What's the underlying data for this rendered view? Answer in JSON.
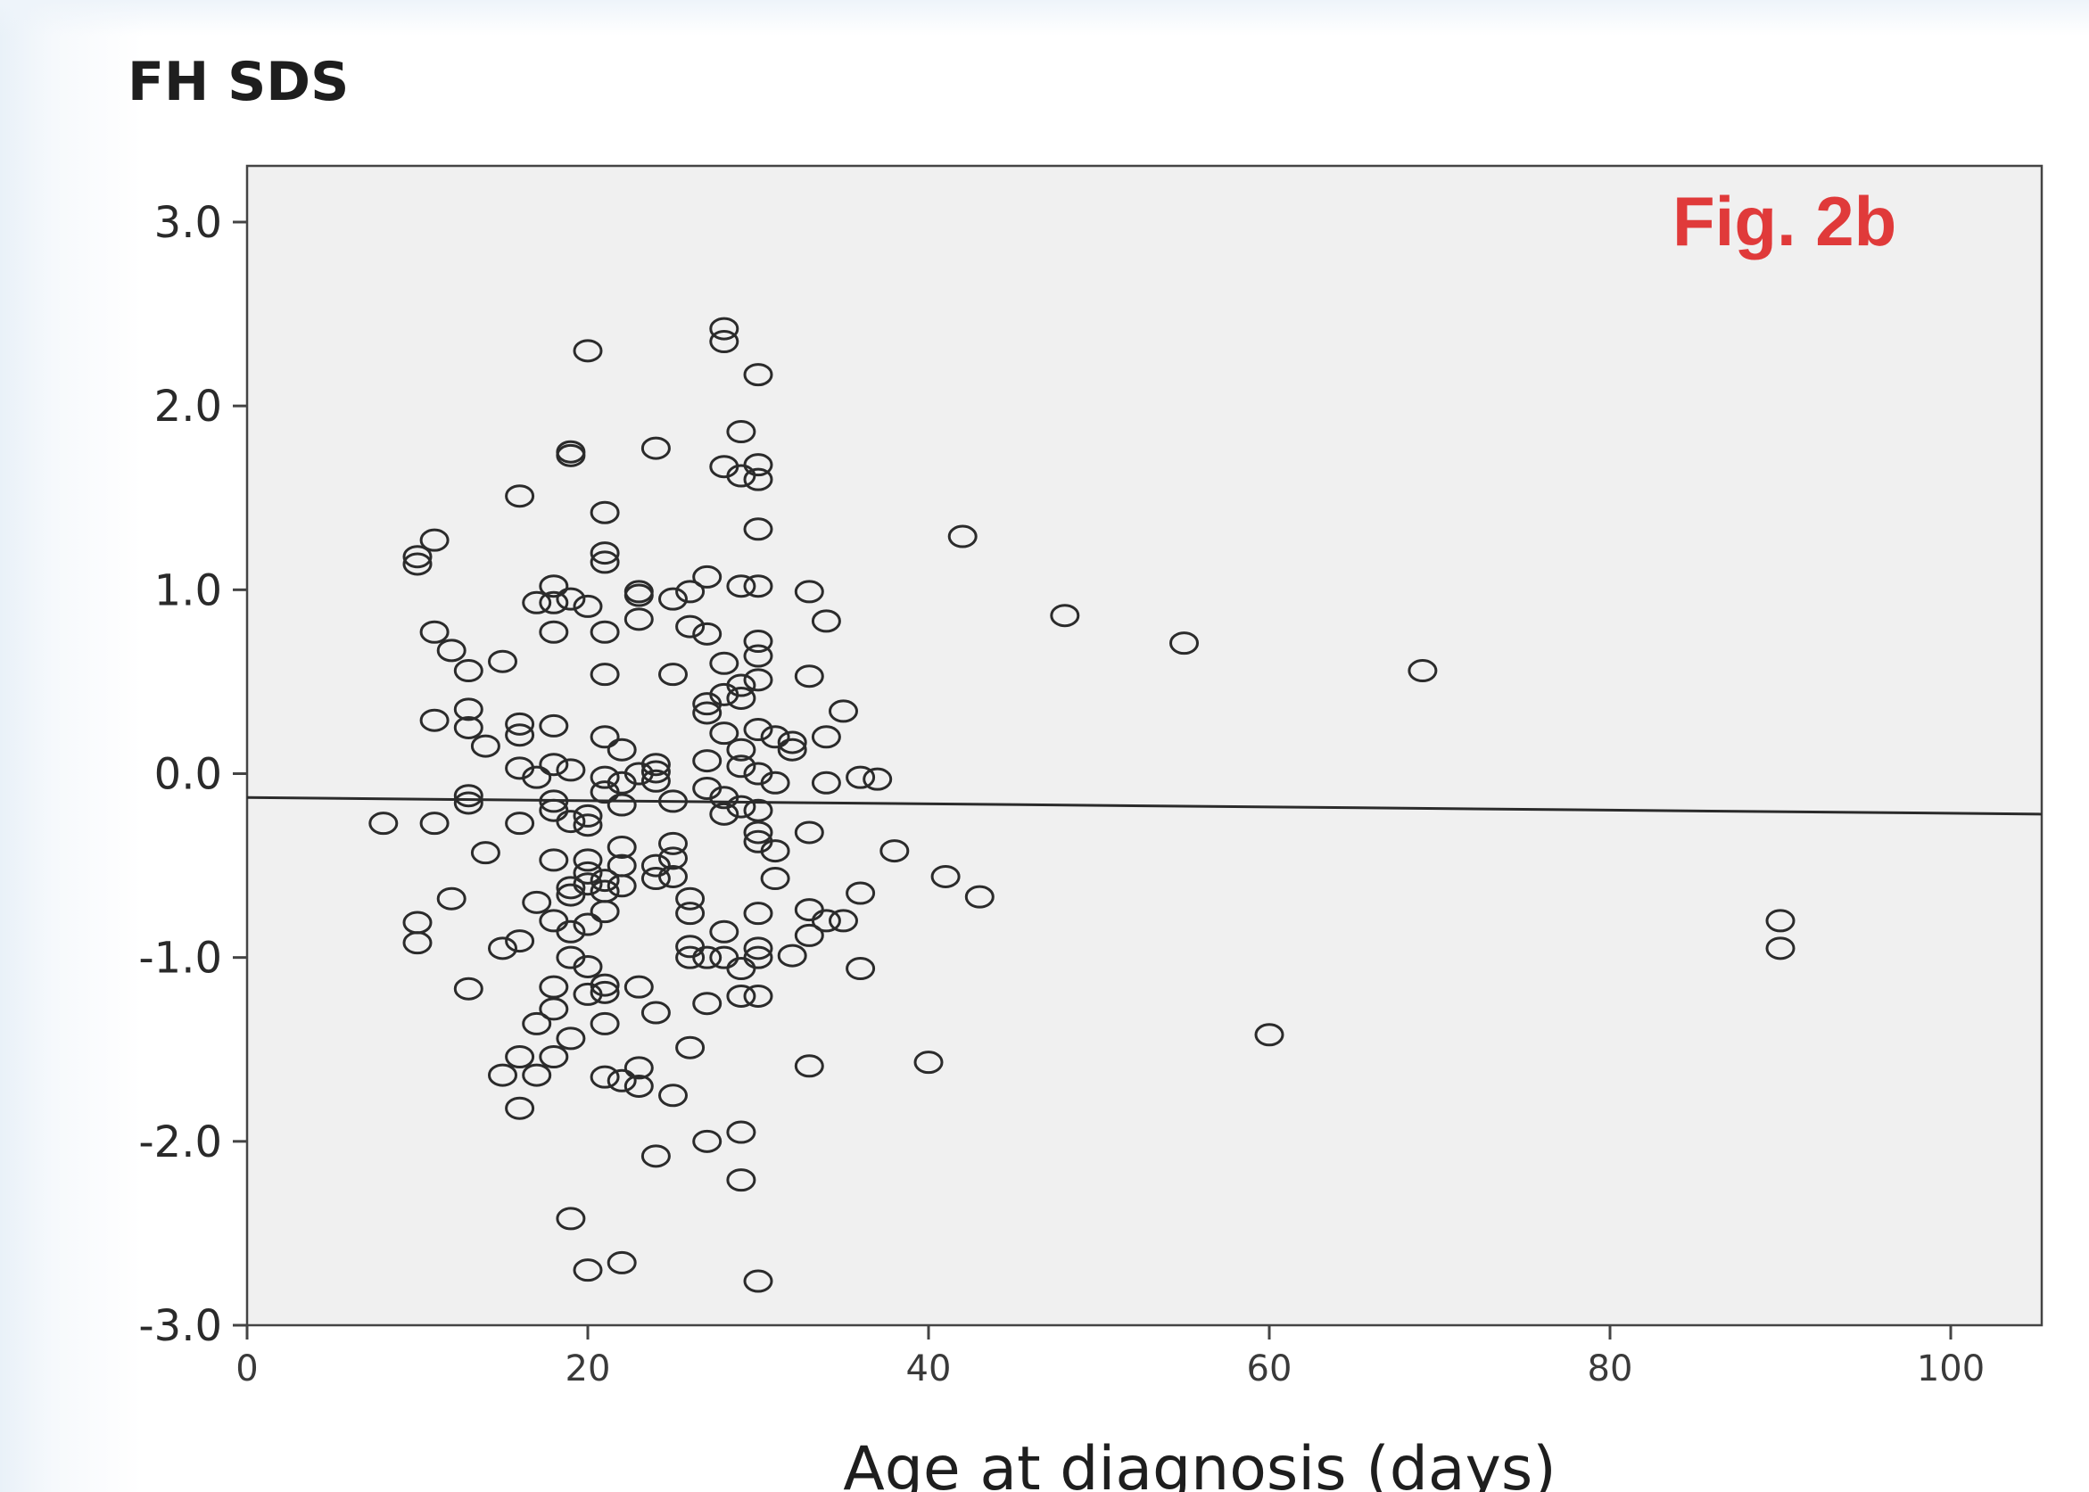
{
  "chart_data": {
    "type": "scatter",
    "title": "FH SDS",
    "annotation": "Fig. 2b",
    "xlabel": "Age at diagnosis (days)",
    "ylabel": "",
    "xlim": [
      0,
      105
    ],
    "ylim": [
      -3.0,
      3.3
    ],
    "xticks": [
      0,
      20,
      40,
      60,
      80,
      100
    ],
    "xtick_labels": [
      "0",
      "20",
      "40",
      "60",
      "80",
      "100"
    ],
    "yticks": [
      3.0,
      2.0,
      1.0,
      0.0,
      -1.0,
      -2.0,
      -3.0
    ],
    "ytick_labels": [
      "3.0",
      "2.0",
      "1.0",
      "0.0",
      "-1.0",
      "-2.0",
      "-3.0"
    ],
    "grid": false,
    "colors": {
      "plot_bg": "#f0f0f0",
      "marker": "#2b2b2b",
      "annotation": "#e03a3a",
      "line": "#2b2b2b"
    },
    "regression_line": {
      "x": [
        0,
        105
      ],
      "y": [
        -0.13,
        -0.22
      ]
    },
    "points": [
      [
        20,
        2.3
      ],
      [
        28,
        2.42
      ],
      [
        28,
        2.35
      ],
      [
        30,
        2.17
      ],
      [
        19,
        1.75
      ],
      [
        19,
        1.73
      ],
      [
        24,
        1.77
      ],
      [
        29,
        1.86
      ],
      [
        28,
        1.67
      ],
      [
        29,
        1.62
      ],
      [
        30,
        1.68
      ],
      [
        30,
        1.6
      ],
      [
        16,
        1.51
      ],
      [
        21,
        1.42
      ],
      [
        30,
        1.33
      ],
      [
        42,
        1.29
      ],
      [
        10,
        1.18
      ],
      [
        10,
        1.14
      ],
      [
        11,
        1.27
      ],
      [
        21,
        1.2
      ],
      [
        21,
        1.15
      ],
      [
        18,
        1.02
      ],
      [
        17,
        0.93
      ],
      [
        18,
        0.93
      ],
      [
        19,
        0.95
      ],
      [
        20,
        0.91
      ],
      [
        23,
        0.99
      ],
      [
        23,
        0.97
      ],
      [
        25,
        0.95
      ],
      [
        26,
        0.99
      ],
      [
        27,
        1.07
      ],
      [
        29,
        1.02
      ],
      [
        30,
        1.02
      ],
      [
        33,
        0.99
      ],
      [
        34,
        0.83
      ],
      [
        48,
        0.86
      ],
      [
        55,
        0.71
      ],
      [
        69,
        0.56
      ],
      [
        11,
        0.77
      ],
      [
        12,
        0.67
      ],
      [
        13,
        0.56
      ],
      [
        15,
        0.61
      ],
      [
        18,
        0.77
      ],
      [
        21,
        0.77
      ],
      [
        23,
        0.84
      ],
      [
        26,
        0.8
      ],
      [
        27,
        0.76
      ],
      [
        30,
        0.72
      ],
      [
        30,
        0.64
      ],
      [
        28,
        0.6
      ],
      [
        21,
        0.54
      ],
      [
        25,
        0.54
      ],
      [
        30,
        0.51
      ],
      [
        29,
        0.48
      ],
      [
        33,
        0.53
      ],
      [
        28,
        0.43
      ],
      [
        27,
        0.38
      ],
      [
        27,
        0.33
      ],
      [
        29,
        0.41
      ],
      [
        35,
        0.34
      ],
      [
        11,
        0.29
      ],
      [
        13,
        0.35
      ],
      [
        13,
        0.25
      ],
      [
        14,
        0.15
      ],
      [
        16,
        0.27
      ],
      [
        16,
        0.21
      ],
      [
        18,
        0.26
      ],
      [
        21,
        0.2
      ],
      [
        22,
        0.13
      ],
      [
        28,
        0.22
      ],
      [
        30,
        0.24
      ],
      [
        31,
        0.2
      ],
      [
        32,
        0.17
      ],
      [
        32,
        0.13
      ],
      [
        34,
        0.2
      ],
      [
        29,
        0.13
      ],
      [
        16,
        0.03
      ],
      [
        17,
        -0.02
      ],
      [
        18,
        0.05
      ],
      [
        19,
        0.02
      ],
      [
        21,
        -0.02
      ],
      [
        22,
        -0.05
      ],
      [
        23,
        0.0
      ],
      [
        24,
        0.05
      ],
      [
        24,
        0.01
      ],
      [
        24,
        -0.04
      ],
      [
        27,
        0.07
      ],
      [
        29,
        0.04
      ],
      [
        30,
        0.0
      ],
      [
        31,
        -0.05
      ],
      [
        34,
        -0.05
      ],
      [
        36,
        -0.02
      ],
      [
        37,
        -0.03
      ],
      [
        13,
        -0.12
      ],
      [
        13,
        -0.16
      ],
      [
        18,
        -0.15
      ],
      [
        18,
        -0.2
      ],
      [
        20,
        -0.23
      ],
      [
        21,
        -0.1
      ],
      [
        22,
        -0.17
      ],
      [
        25,
        -0.15
      ],
      [
        27,
        -0.08
      ],
      [
        28,
        -0.13
      ],
      [
        28,
        -0.22
      ],
      [
        29,
        -0.18
      ],
      [
        30,
        -0.2
      ],
      [
        8,
        -0.27
      ],
      [
        11,
        -0.27
      ],
      [
        16,
        -0.27
      ],
      [
        19,
        -0.26
      ],
      [
        20,
        -0.28
      ],
      [
        30,
        -0.32
      ],
      [
        30,
        -0.37
      ],
      [
        31,
        -0.42
      ],
      [
        33,
        -0.32
      ],
      [
        38,
        -0.42
      ],
      [
        14,
        -0.43
      ],
      [
        18,
        -0.47
      ],
      [
        20,
        -0.47
      ],
      [
        20,
        -0.54
      ],
      [
        22,
        -0.4
      ],
      [
        22,
        -0.5
      ],
      [
        24,
        -0.5
      ],
      [
        24,
        -0.57
      ],
      [
        25,
        -0.38
      ],
      [
        25,
        -0.46
      ],
      [
        25,
        -0.56
      ],
      [
        31,
        -0.57
      ],
      [
        41,
        -0.56
      ],
      [
        36,
        -0.65
      ],
      [
        43,
        -0.67
      ],
      [
        12,
        -0.68
      ],
      [
        19,
        -0.62
      ],
      [
        19,
        -0.66
      ],
      [
        20,
        -0.6
      ],
      [
        21,
        -0.58
      ],
      [
        21,
        -0.64
      ],
      [
        22,
        -0.61
      ],
      [
        26,
        -0.68
      ],
      [
        26,
        -0.76
      ],
      [
        30,
        -0.76
      ],
      [
        33,
        -0.74
      ],
      [
        17,
        -0.7
      ],
      [
        18,
        -0.8
      ],
      [
        19,
        -0.86
      ],
      [
        20,
        -0.82
      ],
      [
        21,
        -0.75
      ],
      [
        34,
        -0.8
      ],
      [
        35,
        -0.8
      ],
      [
        10,
        -0.81
      ],
      [
        10,
        -0.92
      ],
      [
        15,
        -0.95
      ],
      [
        16,
        -0.91
      ],
      [
        19,
        -1.0
      ],
      [
        28,
        -0.86
      ],
      [
        26,
        -0.94
      ],
      [
        26,
        -1.0
      ],
      [
        27,
        -1.0
      ],
      [
        28,
        -1.0
      ],
      [
        30,
        -0.95
      ],
      [
        30,
        -1.0
      ],
      [
        32,
        -0.99
      ],
      [
        33,
        -0.88
      ],
      [
        90,
        -0.8
      ],
      [
        90,
        -0.95
      ],
      [
        20,
        -1.05
      ],
      [
        29,
        -1.06
      ],
      [
        36,
        -1.06
      ],
      [
        13,
        -1.17
      ],
      [
        18,
        -1.16
      ],
      [
        20,
        -1.2
      ],
      [
        21,
        -1.19
      ],
      [
        21,
        -1.15
      ],
      [
        23,
        -1.16
      ],
      [
        27,
        -1.25
      ],
      [
        29,
        -1.21
      ],
      [
        30,
        -1.21
      ],
      [
        18,
        -1.28
      ],
      [
        17,
        -1.36
      ],
      [
        21,
        -1.36
      ],
      [
        24,
        -1.3
      ],
      [
        19,
        -1.44
      ],
      [
        60,
        -1.42
      ],
      [
        16,
        -1.54
      ],
      [
        18,
        -1.54
      ],
      [
        15,
        -1.64
      ],
      [
        17,
        -1.64
      ],
      [
        21,
        -1.65
      ],
      [
        22,
        -1.67
      ],
      [
        23,
        -1.6
      ],
      [
        23,
        -1.7
      ],
      [
        26,
        -1.49
      ],
      [
        33,
        -1.59
      ],
      [
        40,
        -1.57
      ],
      [
        16,
        -1.82
      ],
      [
        25,
        -1.75
      ],
      [
        27,
        -2.0
      ],
      [
        29,
        -1.95
      ],
      [
        24,
        -2.08
      ],
      [
        29,
        -2.21
      ],
      [
        19,
        -2.42
      ],
      [
        20,
        -2.7
      ],
      [
        22,
        -2.66
      ],
      [
        30,
        -2.76
      ]
    ]
  }
}
